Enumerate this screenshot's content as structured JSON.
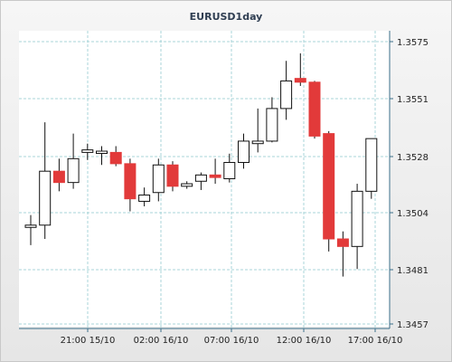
{
  "chart_data": {
    "type": "candlestick",
    "title": "EURUSD1day",
    "y_ticks": [
      "1.3457",
      "1.3481",
      "1.3504",
      "1.3528",
      "1.3551",
      "1.3575"
    ],
    "x_ticks": [
      "21:00 15/10",
      "02:00 16/10",
      "07:00 16/10",
      "12:00 16/10",
      "17:00 16/10"
    ],
    "ylim": [
      1.3457,
      1.3575
    ],
    "grid": true,
    "colors": {
      "up": "#ffffff",
      "down": "#e23a3a",
      "grid": "#a8d4d8",
      "axis": "#3b6f8a"
    },
    "candles": [
      {
        "o": 1.34975,
        "h": 1.35015,
        "l": 1.34895,
        "c": 1.34975
      },
      {
        "o": 1.34975,
        "h": 1.35385,
        "l": 1.3492,
        "c": 1.3519
      },
      {
        "o": 1.3519,
        "h": 1.3524,
        "l": 1.3511,
        "c": 1.35145
      },
      {
        "o": 1.35145,
        "h": 1.3534,
        "l": 1.3512,
        "c": 1.3524
      },
      {
        "o": 1.35265,
        "h": 1.353,
        "l": 1.35235,
        "c": 1.35275
      },
      {
        "o": 1.35265,
        "h": 1.3529,
        "l": 1.35215,
        "c": 1.3527
      },
      {
        "o": 1.35265,
        "h": 1.3529,
        "l": 1.3521,
        "c": 1.3522
      },
      {
        "o": 1.3522,
        "h": 1.3524,
        "l": 1.3503,
        "c": 1.3508
      },
      {
        "o": 1.3507,
        "h": 1.35125,
        "l": 1.3505,
        "c": 1.35095
      },
      {
        "o": 1.35105,
        "h": 1.3524,
        "l": 1.3507,
        "c": 1.35215
      },
      {
        "o": 1.35215,
        "h": 1.3523,
        "l": 1.3511,
        "c": 1.3513
      },
      {
        "o": 1.3513,
        "h": 1.3515,
        "l": 1.3512,
        "c": 1.3514
      },
      {
        "o": 1.3515,
        "h": 1.35185,
        "l": 1.35115,
        "c": 1.35175
      },
      {
        "o": 1.35175,
        "h": 1.3524,
        "l": 1.3514,
        "c": 1.35165
      },
      {
        "o": 1.3516,
        "h": 1.3526,
        "l": 1.35145,
        "c": 1.35225
      },
      {
        "o": 1.35225,
        "h": 1.3534,
        "l": 1.352,
        "c": 1.3531
      },
      {
        "o": 1.353,
        "h": 1.3544,
        "l": 1.35265,
        "c": 1.3531
      },
      {
        "o": 1.3531,
        "h": 1.35485,
        "l": 1.35305,
        "c": 1.3544
      },
      {
        "o": 1.3544,
        "h": 1.3563,
        "l": 1.35395,
        "c": 1.3555
      },
      {
        "o": 1.3556,
        "h": 1.3566,
        "l": 1.3553,
        "c": 1.35545
      },
      {
        "o": 1.35545,
        "h": 1.3555,
        "l": 1.3532,
        "c": 1.3533
      },
      {
        "o": 1.3534,
        "h": 1.3535,
        "l": 1.3487,
        "c": 1.3492
      },
      {
        "o": 1.3492,
        "h": 1.3495,
        "l": 1.3477,
        "c": 1.3489
      },
      {
        "o": 1.3489,
        "h": 1.3514,
        "l": 1.348,
        "c": 1.3511
      },
      {
        "o": 1.3511,
        "h": 1.3532,
        "l": 1.3508,
        "c": 1.3532
      }
    ]
  }
}
